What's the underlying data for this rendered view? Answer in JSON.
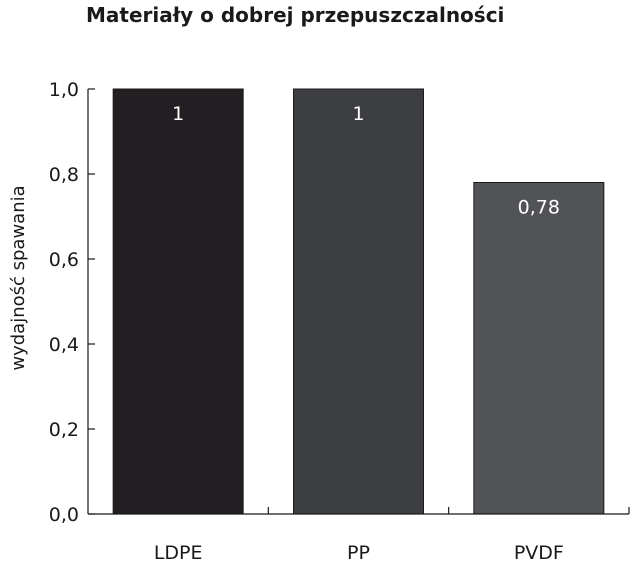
{
  "chart_data": {
    "type": "bar",
    "title": "Materiały o dobrej przepuszczalności",
    "ylabel": "wydajność spawania",
    "xlabel": "",
    "categories": [
      "LDPE",
      "PP",
      "PVDF"
    ],
    "values": [
      1,
      1,
      0.78
    ],
    "value_labels": [
      "1",
      "1",
      "0,78"
    ],
    "ylim": [
      0,
      1.0
    ],
    "yticks": [
      {
        "value": 0.0,
        "label": "0,0"
      },
      {
        "value": 0.2,
        "label": "0,2"
      },
      {
        "value": 0.4,
        "label": "0,4"
      },
      {
        "value": 0.6,
        "label": "0,6"
      },
      {
        "value": 0.8,
        "label": "0,8"
      },
      {
        "value": 1.0,
        "label": "1,0"
      }
    ],
    "grid": false,
    "legend": "none",
    "colors": [
      "#221e21",
      "#3d3e42",
      "#525357"
    ]
  }
}
